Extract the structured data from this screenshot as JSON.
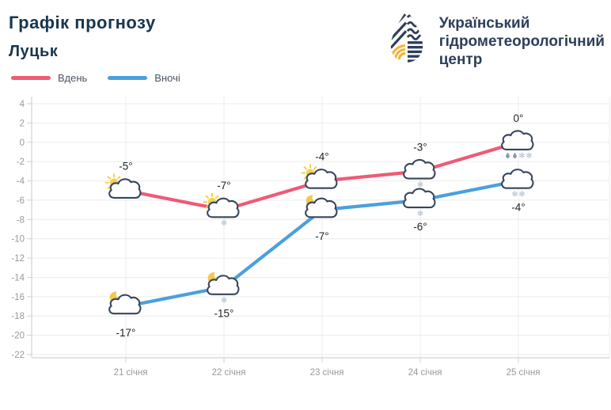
{
  "header": {
    "title": "Графік прогнозу",
    "city": "Луцьк"
  },
  "logo": {
    "line1": "Український",
    "line2": "гідрометеорологічний",
    "line3": "центр"
  },
  "legend": {
    "day": "Вдень",
    "night": "Вночі"
  },
  "colors": {
    "day": "#ee5b76",
    "night": "#4aa0dc",
    "cloud_outline": "#37465c",
    "cloud_fill": "#ffffff",
    "sun": "#f7d04b",
    "moon": "#f2c94c",
    "snow": "#aab6ca",
    "drop": "#8e9aae",
    "title": "#17364f",
    "logo_navy": "#2d3e5a",
    "logo_yellow": "#f0b63a",
    "axis_text": "#96999e",
    "grid": "#ececec",
    "axis_line": "#d2d2d2",
    "temp_label": "#20252e"
  },
  "chart_data": {
    "type": "line",
    "title": "Графік прогнозу Луцьк",
    "categories": [
      "21 січня",
      "22 січня",
      "23 січня",
      "24 січня",
      "25 січня"
    ],
    "y_ticks": [
      4,
      2,
      0,
      -2,
      -4,
      -6,
      -8,
      -10,
      -12,
      -14,
      -16,
      -18,
      -20,
      -22
    ],
    "ylim": [
      -23,
      5
    ],
    "grid": true,
    "legend_position": "top-left",
    "series": [
      {
        "name": "Вдень",
        "color": "#ee5b76",
        "label_position": "above",
        "points": [
          {
            "category": "21 січня",
            "value": -5,
            "label": "-5°",
            "icon": "sun-cloud",
            "precip": []
          },
          {
            "category": "22 січня",
            "value": -7,
            "label": "-7°",
            "icon": "sun-cloud",
            "precip": [
              "snow"
            ]
          },
          {
            "category": "23 січня",
            "value": -4,
            "label": "-4°",
            "icon": "sun-cloud",
            "precip": []
          },
          {
            "category": "24 січня",
            "value": -3,
            "label": "-3°",
            "icon": "cloud",
            "precip": [
              "snow"
            ]
          },
          {
            "category": "25 січня",
            "value": 0,
            "label": "0°",
            "icon": "cloud",
            "precip": [
              "drop",
              "drop",
              "snow",
              "snow"
            ]
          }
        ]
      },
      {
        "name": "Вночі",
        "color": "#4aa0dc",
        "label_position": "below",
        "points": [
          {
            "category": "21 січня",
            "value": -17,
            "label": "-17°",
            "icon": "moon-cloud",
            "precip": []
          },
          {
            "category": "22 січня",
            "value": -15,
            "label": "-15°",
            "icon": "moon-cloud",
            "precip": [
              "snow"
            ]
          },
          {
            "category": "23 січня",
            "value": -7,
            "label": "-7°",
            "icon": "moon-cloud",
            "precip": []
          },
          {
            "category": "24 січня",
            "value": -6,
            "label": "-6°",
            "icon": "cloud",
            "precip": [
              "snow"
            ]
          },
          {
            "category": "25 січня",
            "value": -4,
            "label": "-4°",
            "icon": "cloud",
            "precip": [
              "snow",
              "snow"
            ]
          }
        ]
      }
    ]
  }
}
